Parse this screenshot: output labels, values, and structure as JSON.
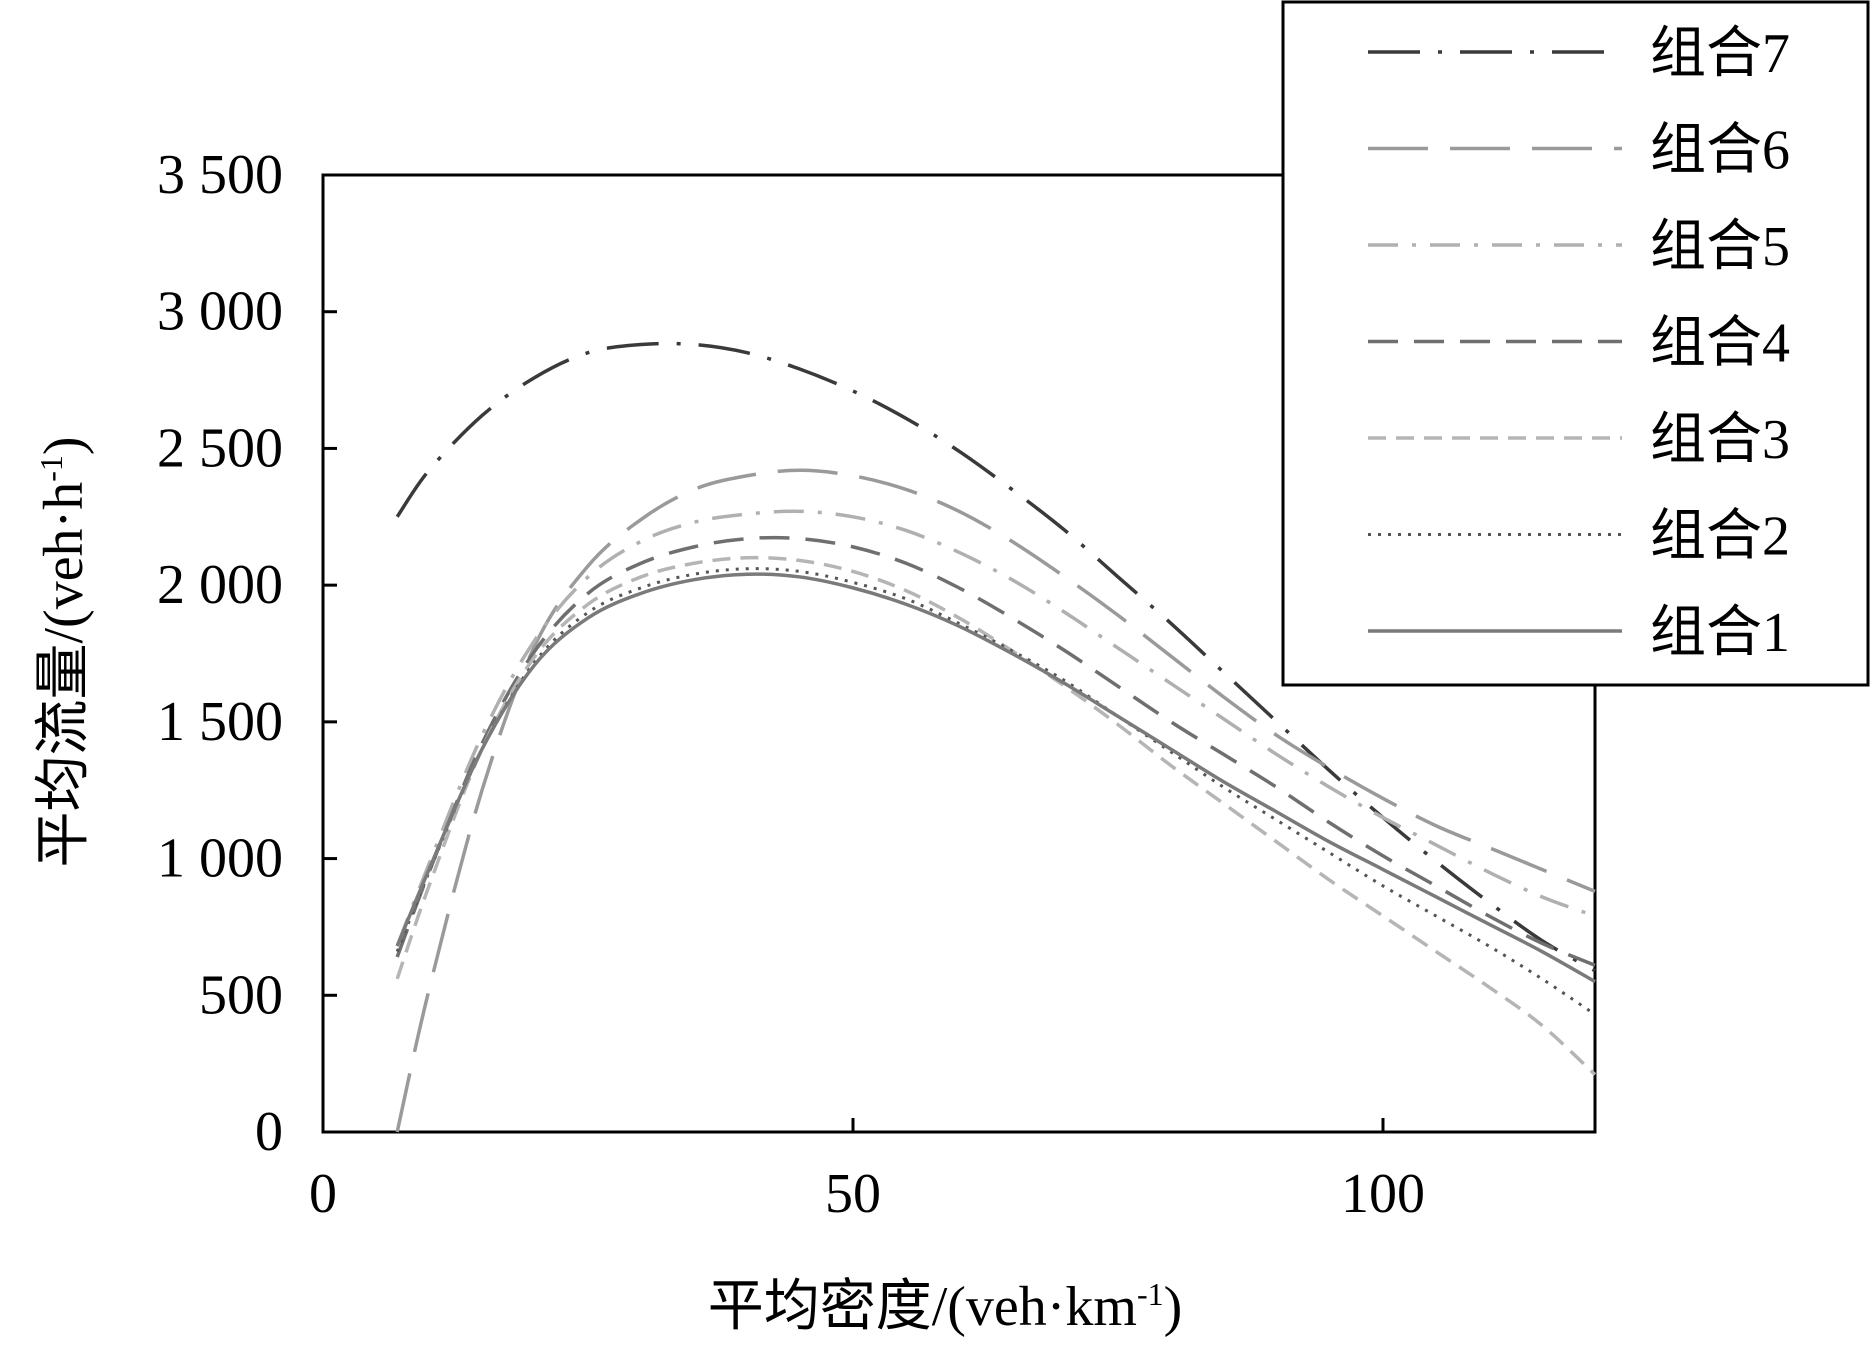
{
  "chart_data": {
    "type": "line",
    "title": "",
    "xlabel": "平均密度/(veh·km",
    "xlabel_sup": "-1",
    "xlabel_end": ")",
    "ylabel": "平均流量/(veh·h",
    "ylabel_sup": "-1",
    "ylabel_end": ")",
    "xlim": [
      0,
      120
    ],
    "ylim": [
      0,
      3500
    ],
    "xticks": [
      0,
      50,
      100
    ],
    "xtick_labels": [
      "0",
      "50",
      "100"
    ],
    "yticks": [
      0,
      500,
      1000,
      1500,
      2000,
      2500,
      3000,
      3500
    ],
    "ytick_labels": [
      "0",
      "500",
      "1 000",
      "1 500",
      "2 000",
      "2 500",
      "3 000",
      "3 500"
    ],
    "grid": false,
    "legend_position": "top-right",
    "series": [
      {
        "name": "组合7",
        "color": "#3a3a3a",
        "dash": "dashdot-long",
        "x": [
          7,
          10,
          15,
          20,
          25,
          30,
          35,
          40,
          45,
          50,
          55,
          60,
          65,
          70,
          75,
          80,
          85,
          90,
          95,
          100,
          105,
          110,
          115,
          120
        ],
        "y": [
          2250,
          2420,
          2620,
          2760,
          2850,
          2880,
          2880,
          2850,
          2790,
          2710,
          2610,
          2490,
          2350,
          2200,
          2030,
          1860,
          1680,
          1500,
          1320,
          1150,
          990,
          840,
          700,
          590
        ]
      },
      {
        "name": "组合6",
        "color": "#9a9a9a",
        "dash": "long-dash",
        "x": [
          7,
          10,
          15,
          20,
          25,
          30,
          35,
          40,
          45,
          50,
          55,
          60,
          65,
          70,
          75,
          80,
          85,
          90,
          95,
          100,
          105,
          110,
          115,
          120
        ],
        "y": [
          0,
          520,
          1250,
          1780,
          2070,
          2240,
          2350,
          2400,
          2420,
          2400,
          2350,
          2270,
          2160,
          2030,
          1890,
          1740,
          1590,
          1450,
          1330,
          1220,
          1120,
          1040,
          960,
          880
        ]
      },
      {
        "name": "组合5",
        "color": "#b0b0b0",
        "dash": "dashdot",
        "x": [
          7,
          10,
          15,
          20,
          25,
          30,
          35,
          40,
          45,
          50,
          55,
          60,
          65,
          70,
          75,
          80,
          85,
          90,
          95,
          100,
          105,
          110,
          115,
          120
        ],
        "y": [
          680,
          980,
          1450,
          1800,
          2030,
          2160,
          2230,
          2260,
          2270,
          2250,
          2200,
          2120,
          2020,
          1900,
          1770,
          1640,
          1510,
          1380,
          1260,
          1150,
          1050,
          950,
          860,
          790
        ]
      },
      {
        "name": "组合4",
        "color": "#6f6f6f",
        "dash": "dash",
        "x": [
          7,
          10,
          15,
          20,
          25,
          30,
          35,
          40,
          45,
          50,
          55,
          60,
          65,
          70,
          75,
          80,
          85,
          90,
          95,
          100,
          105,
          110,
          115,
          120
        ],
        "y": [
          640,
          950,
          1420,
          1760,
          1970,
          2080,
          2140,
          2170,
          2170,
          2140,
          2080,
          1990,
          1880,
          1760,
          1630,
          1500,
          1380,
          1260,
          1130,
          1010,
          900,
          790,
          690,
          610
        ]
      },
      {
        "name": "组合3",
        "color": "#b5b5b5",
        "dash": "short-dash",
        "x": [
          7,
          10,
          15,
          20,
          25,
          30,
          35,
          40,
          45,
          50,
          55,
          60,
          65,
          70,
          75,
          80,
          85,
          90,
          95,
          100,
          105,
          110,
          115,
          120
        ],
        "y": [
          560,
          900,
          1400,
          1740,
          1930,
          2030,
          2080,
          2100,
          2090,
          2050,
          1980,
          1880,
          1760,
          1630,
          1490,
          1340,
          1200,
          1060,
          920,
          790,
          660,
          530,
          390,
          210
        ]
      },
      {
        "name": "组合2",
        "color": "#555555",
        "dash": "dot",
        "x": [
          7,
          10,
          15,
          20,
          25,
          30,
          35,
          40,
          45,
          50,
          55,
          60,
          65,
          70,
          75,
          80,
          85,
          90,
          95,
          100,
          105,
          110,
          115,
          120
        ],
        "y": [
          660,
          950,
          1400,
          1720,
          1900,
          1990,
          2040,
          2060,
          2050,
          2010,
          1950,
          1860,
          1760,
          1650,
          1520,
          1390,
          1260,
          1140,
          1020,
          900,
          790,
          680,
          560,
          430
        ]
      },
      {
        "name": "组合1",
        "color": "#7a7a7a",
        "dash": "solid",
        "x": [
          7,
          10,
          15,
          20,
          25,
          30,
          35,
          40,
          45,
          50,
          55,
          60,
          65,
          70,
          75,
          80,
          85,
          90,
          95,
          100,
          105,
          110,
          115,
          120
        ],
        "y": [
          680,
          960,
          1400,
          1710,
          1880,
          1970,
          2020,
          2040,
          2030,
          1990,
          1930,
          1850,
          1750,
          1640,
          1520,
          1400,
          1280,
          1170,
          1060,
          960,
          860,
          760,
          660,
          550
        ]
      }
    ]
  }
}
